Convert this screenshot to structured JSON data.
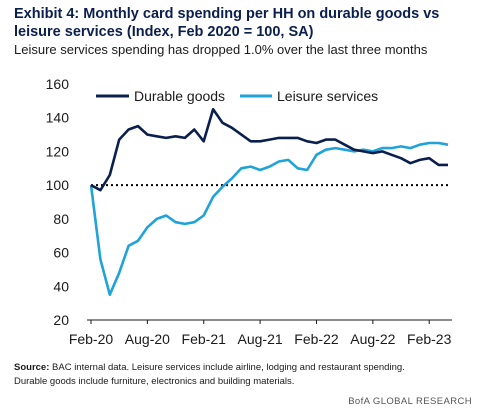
{
  "title": "Exhibit 4: Monthly card spending per HH on durable goods vs leisure services (Index, Feb 2020 = 100, SA)",
  "subtitle": "Leisure services spending has dropped 1.0% over the last three months",
  "footnote": {
    "source_label": "Source:",
    "source_text": "BAC internal data. Leisure services include airline, lodging and restaurant spending.",
    "line2": "Durable goods include furniture, electronics and building materials."
  },
  "brand": "BofA GLOBAL RESEARCH",
  "colors": {
    "durable": "#0b1f4f",
    "leisure": "#1fa3d9",
    "baseline": "#000000"
  },
  "chart_data": {
    "type": "line",
    "title": "Exhibit 4: Monthly card spending per HH on durable goods vs leisure services (Index, Feb 2020 = 100, SA)",
    "ylim": [
      20,
      160
    ],
    "yticks": [
      20,
      40,
      60,
      80,
      100,
      120,
      140,
      160
    ],
    "xticks": [
      "Feb-20",
      "Aug-20",
      "Feb-21",
      "Aug-21",
      "Feb-22",
      "Aug-22",
      "Feb-23"
    ],
    "x": [
      "Feb-20",
      "Mar-20",
      "Apr-20",
      "May-20",
      "Jun-20",
      "Jul-20",
      "Aug-20",
      "Sep-20",
      "Oct-20",
      "Nov-20",
      "Dec-20",
      "Jan-21",
      "Feb-21",
      "Mar-21",
      "Apr-21",
      "May-21",
      "Jun-21",
      "Jul-21",
      "Aug-21",
      "Sep-21",
      "Oct-21",
      "Nov-21",
      "Dec-21",
      "Jan-22",
      "Feb-22",
      "Mar-22",
      "Apr-22",
      "May-22",
      "Jun-22",
      "Jul-22",
      "Aug-22",
      "Sep-22",
      "Oct-22",
      "Nov-22",
      "Dec-22",
      "Jan-23",
      "Feb-23",
      "Mar-23",
      "Apr-23"
    ],
    "series": [
      {
        "name": "Durable goods",
        "values": [
          100,
          97,
          106,
          127,
          133,
          135,
          130,
          129,
          128,
          129,
          128,
          133,
          126,
          145,
          137,
          134,
          130,
          126,
          126,
          127,
          128,
          128,
          128,
          126,
          125,
          127,
          127,
          124,
          121,
          120,
          119,
          120,
          118,
          116,
          113,
          115,
          116,
          112,
          112
        ]
      },
      {
        "name": "Leisure services",
        "values": [
          100,
          56,
          35,
          48,
          64,
          67,
          75,
          80,
          82,
          78,
          77,
          78,
          82,
          93,
          99,
          104,
          110,
          111,
          109,
          111,
          114,
          115,
          110,
          109,
          118,
          121,
          122,
          121,
          120,
          121,
          120,
          122,
          122,
          123,
          122,
          124,
          125,
          125,
          124
        ]
      }
    ],
    "reference_line": 100,
    "grid": false,
    "legend": "top"
  }
}
